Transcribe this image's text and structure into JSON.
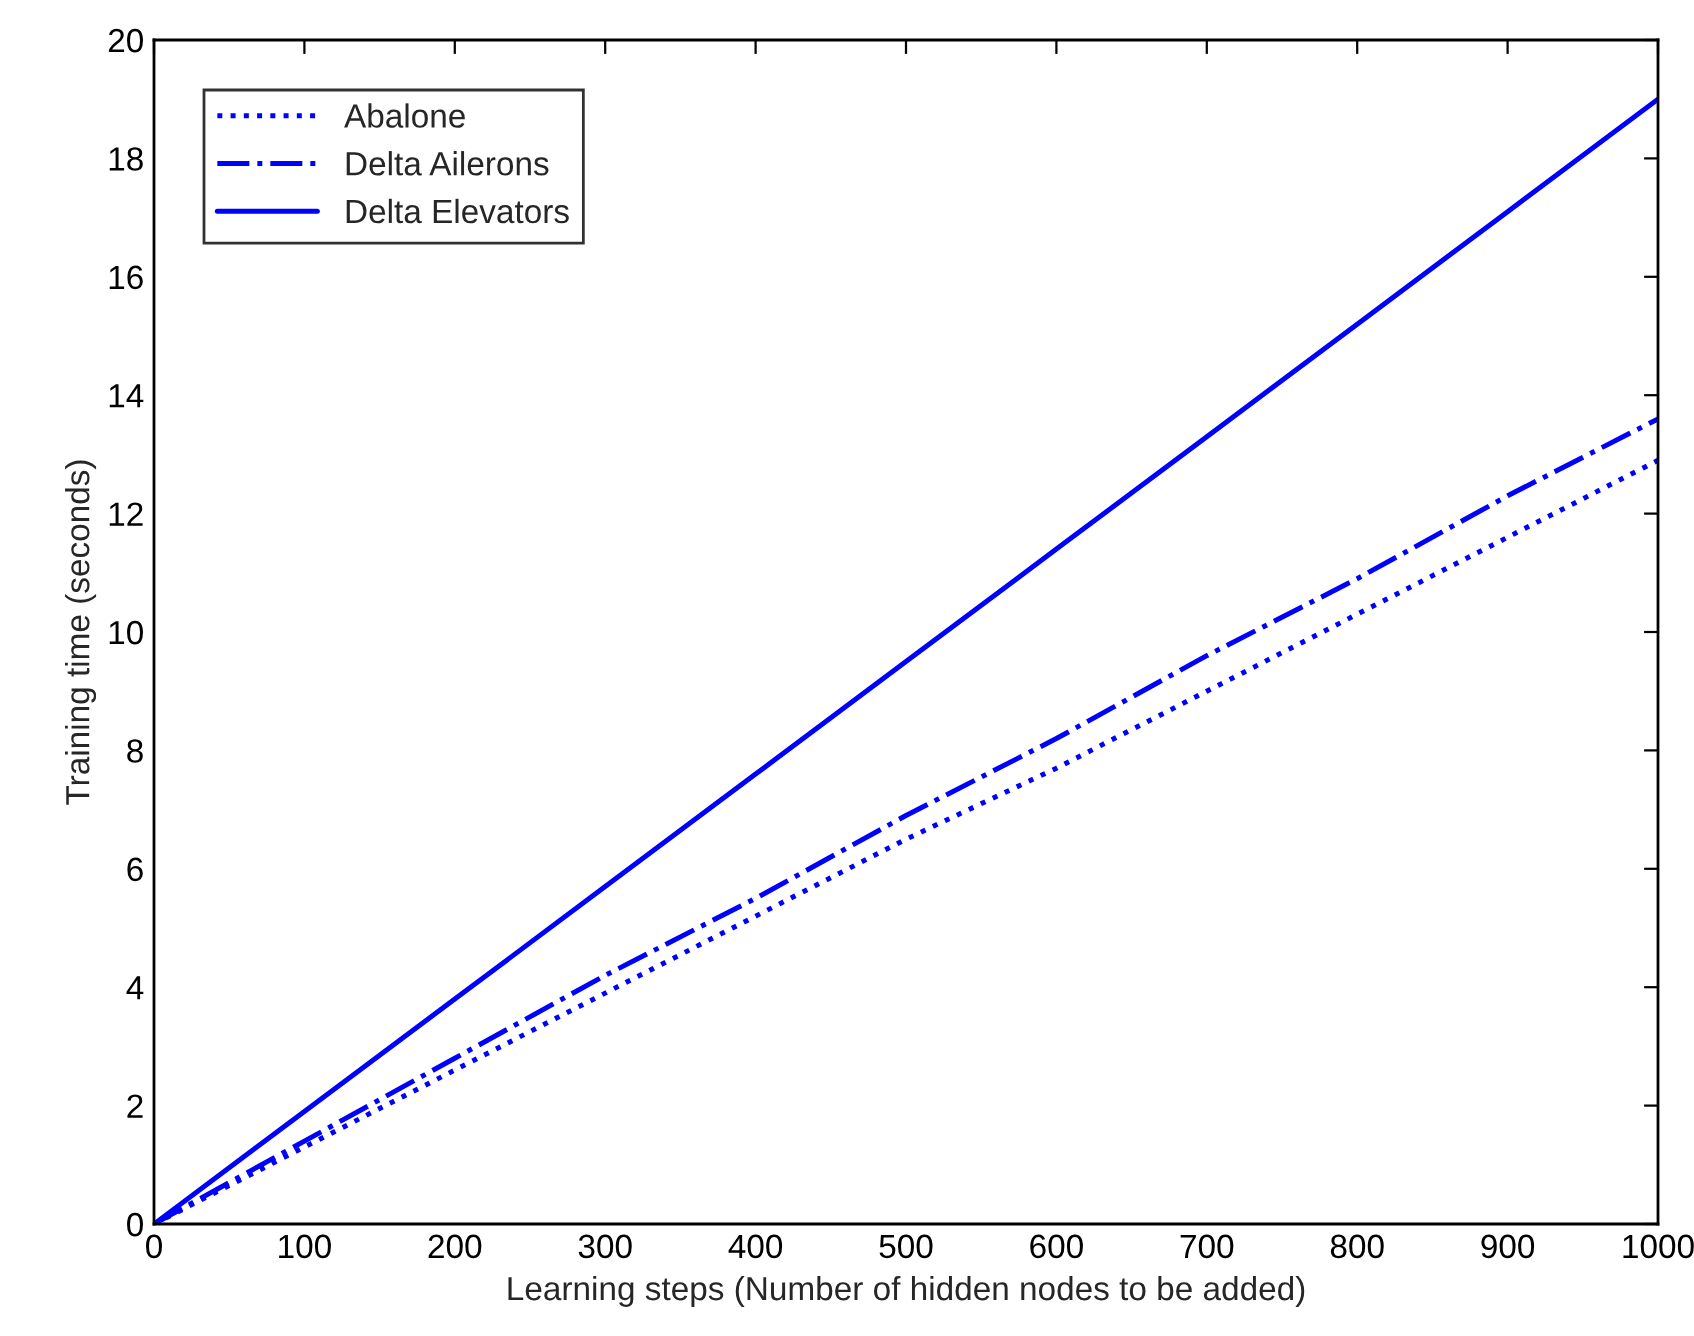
{
  "chart_data": {
    "type": "line",
    "xlabel": "Learning steps (Number of hidden nodes to be added)",
    "ylabel": "Training time (seconds)",
    "x": [
      0,
      100,
      200,
      300,
      400,
      500,
      600,
      700,
      800,
      900,
      1000
    ],
    "series": [
      {
        "name": "Abalone",
        "color": "#0000ff",
        "line_style": "dotted",
        "values": [
          0,
          1.3,
          2.6,
          3.9,
          5.2,
          6.5,
          7.7,
          9.0,
          10.3,
          11.6,
          12.9
        ]
      },
      {
        "name": "Delta Ailerons",
        "color": "#0000ff",
        "line_style": "dashdot",
        "values": [
          0,
          1.4,
          2.8,
          4.2,
          5.5,
          6.9,
          8.2,
          9.6,
          10.9,
          12.3,
          13.6
        ]
      },
      {
        "name": "Delta Elevators",
        "color": "#0000ff",
        "line_style": "solid",
        "values": [
          0,
          1.9,
          3.8,
          5.7,
          7.6,
          9.5,
          11.4,
          13.3,
          15.2,
          17.1,
          19.0
        ]
      }
    ],
    "xlim": [
      0,
      1000
    ],
    "xticks": [
      0,
      100,
      200,
      300,
      400,
      500,
      600,
      700,
      800,
      900,
      1000
    ],
    "ylim": [
      0,
      20
    ],
    "yticks": [
      0,
      2,
      4,
      6,
      8,
      10,
      12,
      14,
      16,
      18,
      20
    ],
    "grid": false,
    "legend": "top left",
    "marker": "none"
  }
}
